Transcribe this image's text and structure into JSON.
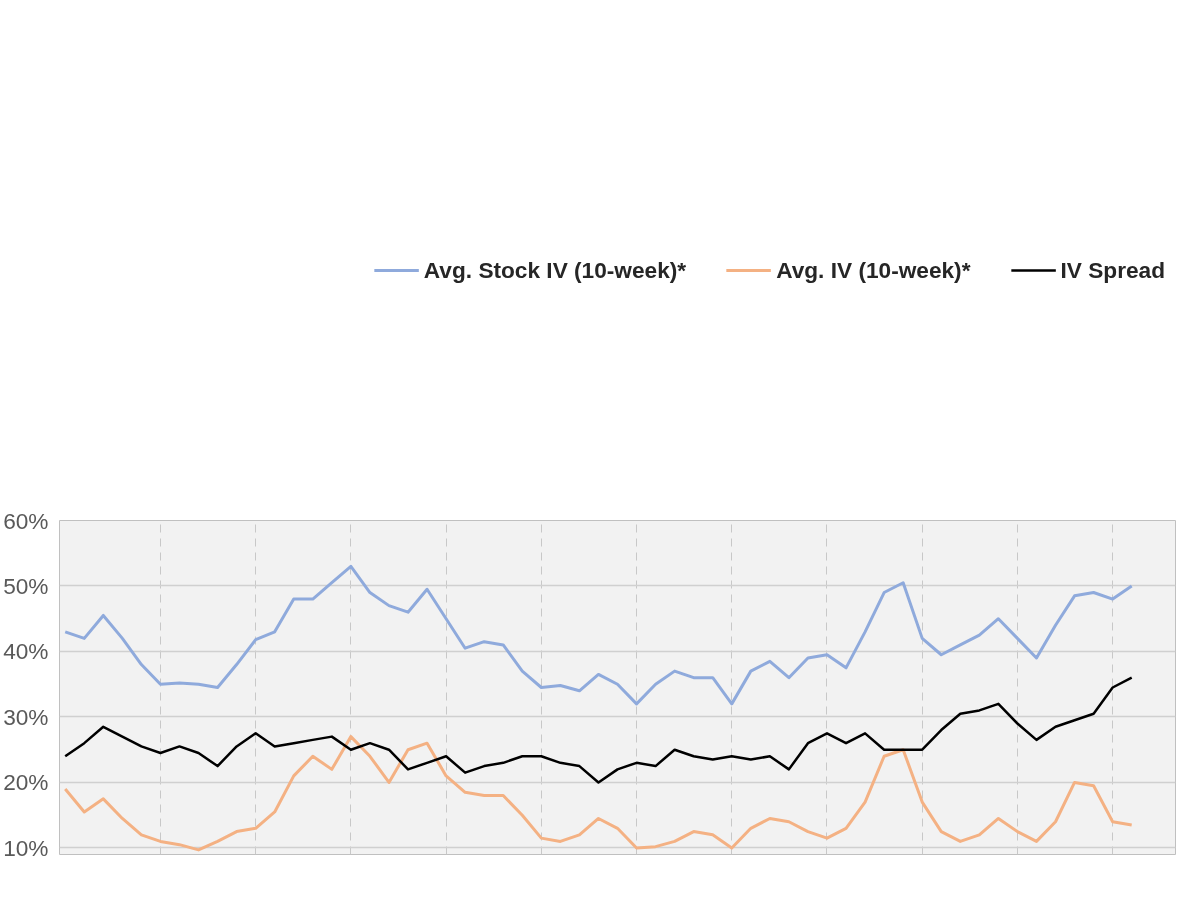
{
  "chart_data": {
    "type": "line",
    "categories": [
      null,
      null,
      null,
      null,
      null,
      null,
      null,
      null,
      null,
      null,
      null,
      null,
      null,
      null,
      null,
      null,
      null,
      null,
      null,
      null,
      null,
      null,
      null,
      null,
      null,
      null,
      null,
      null,
      null,
      null,
      null,
      null,
      null,
      null,
      null,
      null,
      null,
      null,
      null,
      null,
      null,
      null,
      null,
      null,
      null,
      null,
      null,
      null,
      null,
      null,
      null,
      null,
      null,
      null,
      null,
      null,
      null
    ],
    "series": [
      {
        "name": "Avg. Stock IV (10-week)*",
        "color": "#8faadc",
        "values": [
          43,
          42,
          45.5,
          42,
          38,
          35,
          35.2,
          35,
          34.5,
          38,
          41.8,
          43,
          48,
          48,
          50.5,
          53,
          49,
          47,
          46,
          49.5,
          45,
          40.5,
          41.5,
          41,
          37,
          34.5,
          34.8,
          34,
          36.5,
          35,
          32,
          35,
          37,
          36,
          36,
          32,
          37,
          38.5,
          36,
          39,
          39.5,
          37.5,
          43,
          49,
          50.5,
          42,
          39.5,
          41,
          42.5,
          45,
          42,
          39,
          44,
          48.5,
          49,
          48,
          50
        ]
      },
      {
        "name": "Avg. IV (10-week)*",
        "color": "#f4b183",
        "values": [
          19,
          15.5,
          17.5,
          14.5,
          12,
          11,
          10.5,
          9.7,
          11,
          12.5,
          13,
          15.5,
          21,
          24,
          22,
          27,
          24,
          20,
          25,
          26,
          21,
          18.5,
          18,
          18,
          15,
          11.5,
          11,
          12,
          14.5,
          13,
          10,
          10.2,
          11,
          12.5,
          12,
          10,
          13,
          14.5,
          14,
          12.5,
          11.5,
          13,
          17,
          24,
          25,
          17,
          12.5,
          11,
          12,
          14.5,
          12.5,
          11,
          14,
          20,
          19.5,
          14,
          13.5
        ]
      },
      {
        "name": "IV Spread",
        "color": "#000000",
        "values": [
          24,
          26,
          28.5,
          27,
          25.5,
          24.5,
          25.5,
          24.5,
          22.5,
          25.5,
          27.5,
          25.5,
          26,
          26.5,
          27,
          25,
          26,
          25,
          22,
          23,
          24,
          21.5,
          22.5,
          23,
          24,
          24,
          23,
          22.5,
          20,
          22,
          23,
          22.5,
          25,
          24,
          23.5,
          24,
          23.5,
          24,
          22,
          26,
          27.5,
          26,
          27.5,
          25,
          25,
          25,
          28,
          30.5,
          31,
          32,
          29,
          26.5,
          28.5,
          29.5,
          30.5,
          34.5,
          36
        ]
      }
    ],
    "ylim": [
      9,
      60
    ],
    "yticks": [
      {
        "value": 10,
        "label": "10%"
      },
      {
        "value": 20,
        "label": "20%"
      },
      {
        "value": 30,
        "label": "30%"
      },
      {
        "value": 40,
        "label": "40%"
      },
      {
        "value": 50,
        "label": "50%"
      },
      {
        "value": 60,
        "label": "60%"
      }
    ],
    "grid": true,
    "legend": "top",
    "tick_labels": "y",
    "line_style": "solid",
    "marker": "none"
  }
}
